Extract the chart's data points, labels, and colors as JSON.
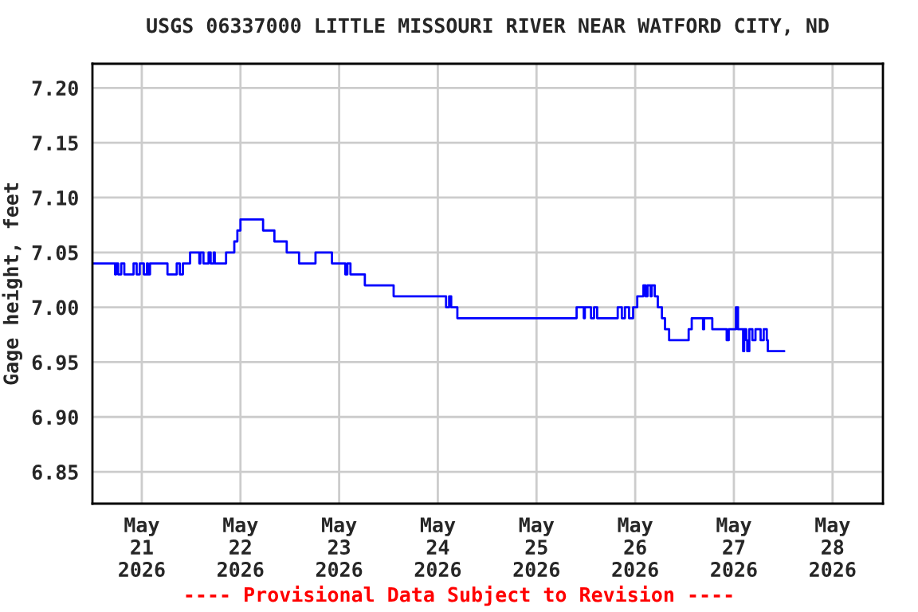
{
  "chart_data": {
    "type": "step",
    "title": "USGS 06337000 LITTLE MISSOURI RIVER NEAR WATFORD CITY, ND",
    "ylabel": "Gage height, feet",
    "annotations": [
      "---- Provisional Data Subject to Revision ----"
    ],
    "xlim": [
      "2026-05-20T12:00",
      "2026-05-28T12:15"
    ],
    "ylim": [
      6.821,
      7.222
    ],
    "xticks": [
      {
        "value": "2026-05-21",
        "label": "May\n21\n2026"
      },
      {
        "value": "2026-05-22",
        "label": "May\n22\n2026"
      },
      {
        "value": "2026-05-23",
        "label": "May\n23\n2026"
      },
      {
        "value": "2026-05-24",
        "label": "May\n24\n2026"
      },
      {
        "value": "2026-05-25",
        "label": "May\n25\n2026"
      },
      {
        "value": "2026-05-26",
        "label": "May\n26\n2026"
      },
      {
        "value": "2026-05-27",
        "label": "May\n27\n2026"
      },
      {
        "value": "2026-05-28",
        "label": "May\n28\n2026"
      }
    ],
    "yticks": [
      {
        "value": 6.85,
        "label": "6.85"
      },
      {
        "value": 6.9,
        "label": "6.90"
      },
      {
        "value": 6.95,
        "label": "6.95"
      },
      {
        "value": 7.0,
        "label": "7.00"
      },
      {
        "value": 7.05,
        "label": "7.05"
      },
      {
        "value": 7.1,
        "label": "7.10"
      },
      {
        "value": 7.15,
        "label": "7.15"
      },
      {
        "value": 7.2,
        "label": "7.20"
      }
    ],
    "grid": true,
    "legend": false,
    "series": [
      {
        "color": "#0000ff",
        "x": [
          "2026-05-20T12:00",
          "2026-05-20T17:30",
          "2026-05-20T17:45",
          "2026-05-20T18:15",
          "2026-05-20T19:00",
          "2026-05-20T19:45",
          "2026-05-20T22:00",
          "2026-05-20T22:45",
          "2026-05-20T23:30",
          "2026-05-21T00:30",
          "2026-05-21T01:15",
          "2026-05-21T01:30",
          "2026-05-21T02:00",
          "2026-05-21T06:15",
          "2026-05-21T08:30",
          "2026-05-21T09:15",
          "2026-05-21T10:00",
          "2026-05-21T11:45",
          "2026-05-21T14:00",
          "2026-05-21T14:15",
          "2026-05-21T15:00",
          "2026-05-21T16:15",
          "2026-05-21T16:45",
          "2026-05-21T17:30",
          "2026-05-21T17:45",
          "2026-05-21T20:30",
          "2026-05-21T22:30",
          "2026-05-21T23:15",
          "2026-05-22T00:00",
          "2026-05-22T05:30",
          "2026-05-22T08:15",
          "2026-05-22T11:15",
          "2026-05-22T14:15",
          "2026-05-22T18:15",
          "2026-05-22T22:15",
          "2026-05-23T01:30",
          "2026-05-23T02:00",
          "2026-05-23T02:45",
          "2026-05-23T06:15",
          "2026-05-23T13:15",
          "2026-05-24T02:00",
          "2026-05-24T02:45",
          "2026-05-24T03:15",
          "2026-05-24T04:45",
          "2026-05-25T09:45",
          "2026-05-25T11:30",
          "2026-05-25T11:45",
          "2026-05-25T13:15",
          "2026-05-25T14:00",
          "2026-05-25T14:45",
          "2026-05-25T19:45",
          "2026-05-25T20:45",
          "2026-05-25T21:30",
          "2026-05-25T22:30",
          "2026-05-25T23:30",
          "2026-05-26T00:30",
          "2026-05-26T02:00",
          "2026-05-26T02:30",
          "2026-05-26T03:00",
          "2026-05-26T03:45",
          "2026-05-26T04:00",
          "2026-05-26T04:45",
          "2026-05-26T05:30",
          "2026-05-26T06:30",
          "2026-05-26T07:15",
          "2026-05-26T08:15",
          "2026-05-26T13:00",
          "2026-05-26T13:45",
          "2026-05-26T16:30",
          "2026-05-26T16:45",
          "2026-05-26T18:45",
          "2026-05-26T22:15",
          "2026-05-26T22:45",
          "2026-05-27T00:30",
          "2026-05-27T01:00",
          "2026-05-27T02:15",
          "2026-05-27T02:30",
          "2026-05-27T03:00",
          "2026-05-27T03:15",
          "2026-05-27T03:45",
          "2026-05-27T04:30",
          "2026-05-27T05:15",
          "2026-05-27T06:30",
          "2026-05-27T07:15",
          "2026-05-27T08:00",
          "2026-05-27T08:15",
          "2026-05-27T12:15"
        ],
        "values": [
          7.04,
          7.03,
          7.04,
          7.03,
          7.04,
          7.03,
          7.04,
          7.03,
          7.04,
          7.03,
          7.04,
          7.03,
          7.04,
          7.03,
          7.04,
          7.03,
          7.04,
          7.05,
          7.04,
          7.05,
          7.04,
          7.05,
          7.04,
          7.05,
          7.04,
          7.05,
          7.06,
          7.07,
          7.08,
          7.07,
          7.06,
          7.05,
          7.04,
          7.05,
          7.04,
          7.03,
          7.04,
          7.03,
          7.02,
          7.01,
          7.0,
          7.01,
          7.0,
          6.99,
          7.0,
          6.99,
          7.0,
          6.99,
          7.0,
          6.99,
          7.0,
          6.99,
          7.0,
          6.99,
          7.0,
          7.01,
          7.02,
          7.01,
          7.02,
          7.01,
          7.02,
          7.01,
          7.0,
          6.99,
          6.98,
          6.97,
          6.98,
          6.99,
          6.98,
          6.99,
          6.98,
          6.97,
          6.98,
          7.0,
          6.98,
          6.96,
          6.98,
          6.97,
          6.96,
          6.98,
          6.97,
          6.98,
          6.97,
          6.98,
          6.97,
          6.96,
          6.96
        ]
      }
    ]
  }
}
